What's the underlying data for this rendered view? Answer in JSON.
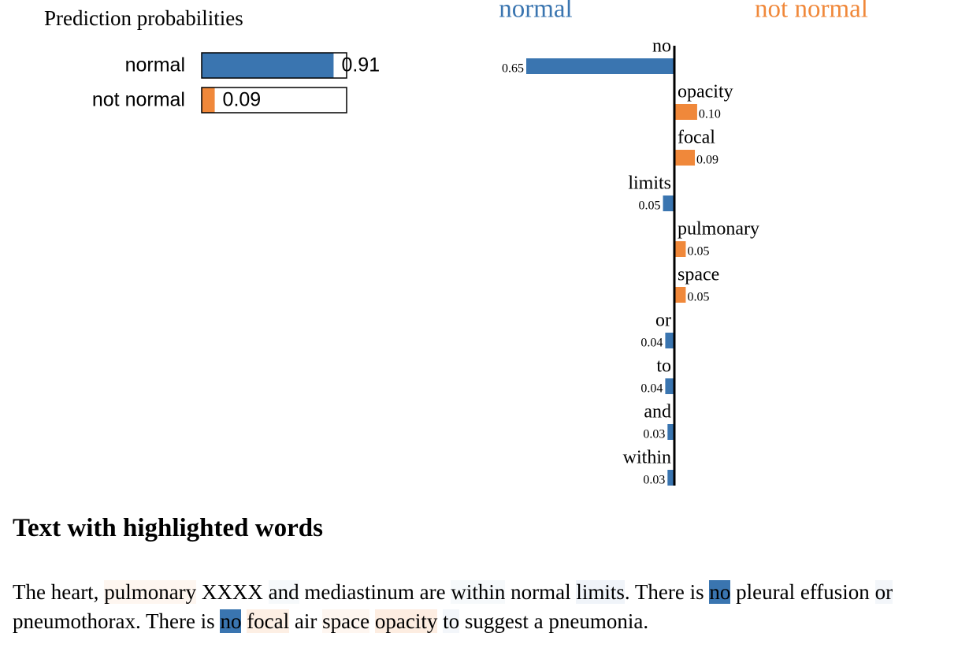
{
  "chart_data": [
    {
      "type": "probability-bar",
      "title": "Prediction probabilities",
      "categories": [
        "normal",
        "not normal"
      ],
      "values": [
        0.91,
        0.09
      ],
      "colors": [
        "#3a75b0",
        "#f0883a"
      ]
    },
    {
      "type": "feature-weight-bar",
      "classes": [
        "normal",
        "not normal"
      ],
      "class_colors": [
        "#3a75b0",
        "#f0883a"
      ],
      "categories": [
        "no",
        "opacity",
        "focal",
        "limits",
        "pulmonary",
        "space",
        "or",
        "to",
        "and",
        "within"
      ],
      "values": [
        0.65,
        0.1,
        0.09,
        0.05,
        0.05,
        0.05,
        0.04,
        0.04,
        0.03,
        0.03
      ],
      "value_labels": [
        "0.65",
        "0.10",
        "0.09",
        "0.05",
        "0.05",
        "0.05",
        "0.04",
        "0.04",
        "0.03",
        "0.03"
      ],
      "bar_class": [
        0,
        1,
        1,
        0,
        1,
        1,
        0,
        0,
        0,
        0
      ]
    }
  ],
  "text": {
    "title": "Text with highlighted words",
    "segments": [
      {
        "text": "The heart, "
      },
      {
        "text": "pulmonary",
        "feature": 4
      },
      {
        "text": " XXXX "
      },
      {
        "text": "and",
        "feature": 8
      },
      {
        "text": " mediastinum are "
      },
      {
        "text": "within",
        "feature": 9
      },
      {
        "text": " normal "
      },
      {
        "text": "limits",
        "feature": 3
      },
      {
        "text": ". There is "
      },
      {
        "text": "no",
        "feature": 0
      },
      {
        "text": " pleural effusion "
      },
      {
        "text": "or",
        "feature": 6
      },
      {
        "text": " pneumothorax. There is "
      },
      {
        "text": "no",
        "feature": 0
      },
      {
        "text": " "
      },
      {
        "text": "focal",
        "feature": 2
      },
      {
        "text": " air "
      },
      {
        "text": "space",
        "feature": 5
      },
      {
        "text": " "
      },
      {
        "text": "opacity",
        "feature": 1
      },
      {
        "text": " "
      },
      {
        "text": "to",
        "feature": 7
      },
      {
        "text": " suggest a pneumonia."
      }
    ]
  }
}
